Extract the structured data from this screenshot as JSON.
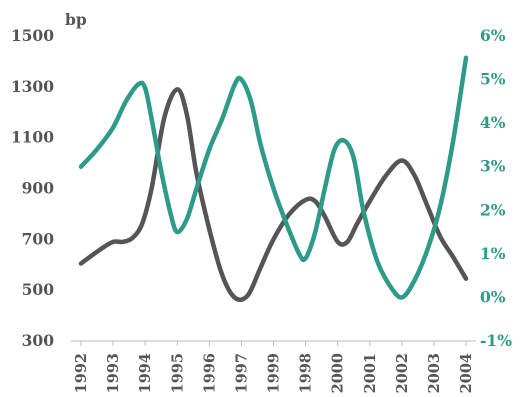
{
  "chart_data": {
    "type": "line",
    "title": "",
    "xlabel": "",
    "ylabel": "bp",
    "categories": [
      "1992",
      "1993",
      "1994",
      "1995",
      "1996",
      "1997",
      "1999",
      "1998",
      "2000",
      "2001",
      "2002",
      "2003",
      "2004"
    ],
    "y_left": {
      "label": "bp",
      "lim": [
        300,
        1500
      ],
      "ticks": [
        "300",
        "500",
        "700",
        "900",
        "1100",
        "1300",
        "1500"
      ]
    },
    "y_right": {
      "label": "",
      "lim": [
        -1,
        6
      ],
      "ticks": [
        "-1%",
        "0%",
        "1%",
        "2%",
        "3%",
        "4%",
        "5%",
        "6%"
      ]
    },
    "grid": false,
    "legend": "none",
    "series": [
      {
        "axis": "left",
        "color": "#555555",
        "points": [
          [
            0.0,
            605
          ],
          [
            0.6,
            660
          ],
          [
            1.0,
            690
          ],
          [
            1.3,
            690
          ],
          [
            1.6,
            705
          ],
          [
            1.9,
            760
          ],
          [
            2.2,
            900
          ],
          [
            2.6,
            1180
          ],
          [
            3.0,
            1290
          ],
          [
            3.3,
            1190
          ],
          [
            3.6,
            960
          ],
          [
            4.0,
            740
          ],
          [
            4.4,
            560
          ],
          [
            4.8,
            470
          ],
          [
            5.2,
            480
          ],
          [
            5.6,
            590
          ],
          [
            6.0,
            700
          ],
          [
            6.5,
            800
          ],
          [
            7.0,
            855
          ],
          [
            7.3,
            850
          ],
          [
            7.6,
            790
          ],
          [
            8.0,
            690
          ],
          [
            8.3,
            690
          ],
          [
            8.6,
            760
          ],
          [
            9.0,
            850
          ],
          [
            9.5,
            950
          ],
          [
            10.0,
            1010
          ],
          [
            10.4,
            950
          ],
          [
            10.8,
            830
          ],
          [
            11.2,
            710
          ],
          [
            11.6,
            630
          ],
          [
            12.0,
            545
          ]
        ]
      },
      {
        "axis": "right",
        "color": "#2e9a8a",
        "points": [
          [
            0.0,
            3.0
          ],
          [
            0.5,
            3.4
          ],
          [
            1.0,
            3.9
          ],
          [
            1.4,
            4.5
          ],
          [
            1.8,
            4.9
          ],
          [
            2.0,
            4.8
          ],
          [
            2.2,
            4.1
          ],
          [
            2.5,
            2.9
          ],
          [
            2.8,
            1.9
          ],
          [
            3.0,
            1.5
          ],
          [
            3.3,
            1.8
          ],
          [
            3.6,
            2.5
          ],
          [
            4.0,
            3.4
          ],
          [
            4.4,
            4.1
          ],
          [
            4.8,
            4.9
          ],
          [
            5.0,
            5.0
          ],
          [
            5.3,
            4.5
          ],
          [
            5.6,
            3.5
          ],
          [
            6.0,
            2.5
          ],
          [
            6.4,
            1.7
          ],
          [
            6.8,
            1.0
          ],
          [
            7.0,
            0.9
          ],
          [
            7.3,
            1.5
          ],
          [
            7.6,
            2.5
          ],
          [
            7.9,
            3.4
          ],
          [
            8.2,
            3.6
          ],
          [
            8.5,
            3.2
          ],
          [
            8.8,
            2.0
          ],
          [
            9.2,
            0.9
          ],
          [
            9.6,
            0.3
          ],
          [
            10.0,
            0.0
          ],
          [
            10.4,
            0.4
          ],
          [
            10.8,
            1.1
          ],
          [
            11.2,
            2.1
          ],
          [
            11.6,
            3.6
          ],
          [
            12.0,
            5.5
          ]
        ]
      }
    ]
  }
}
